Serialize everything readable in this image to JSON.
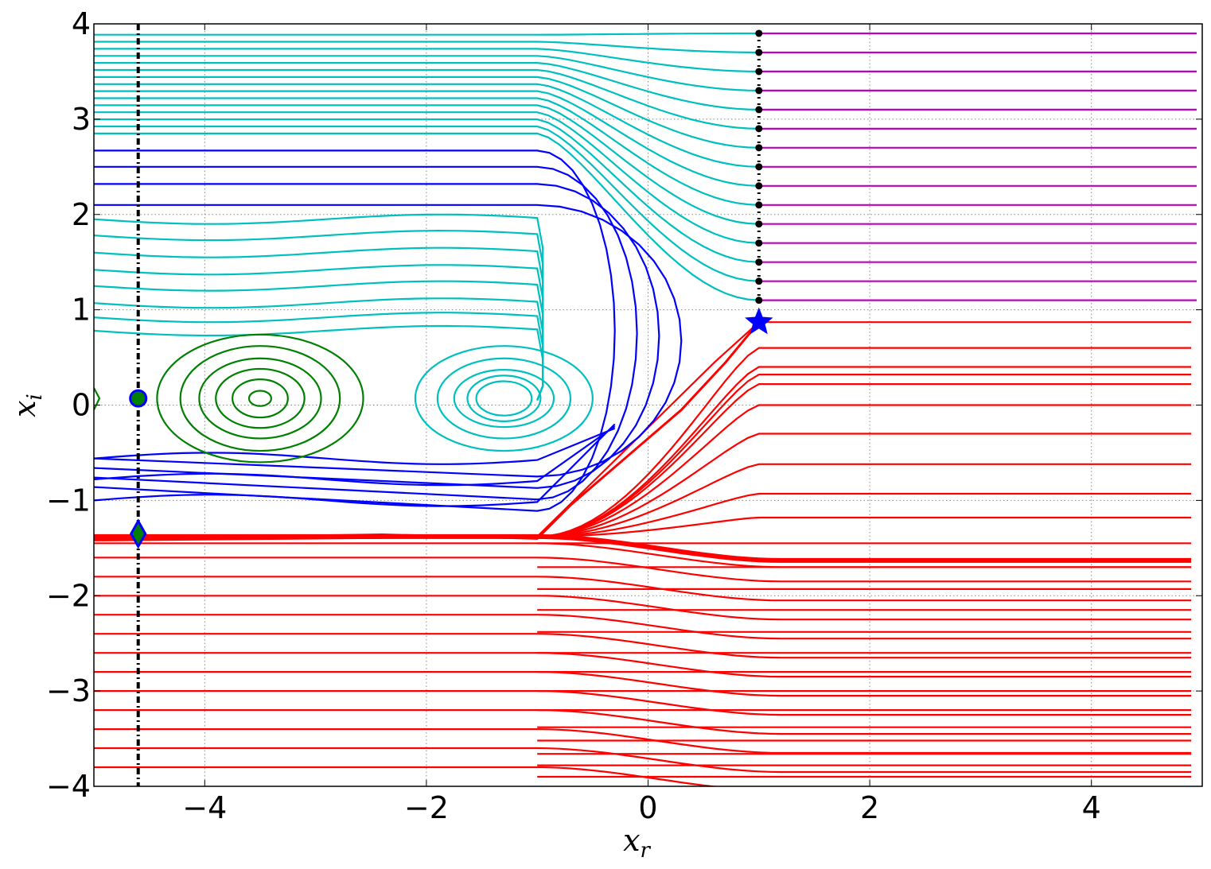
{
  "chart_data": {
    "type": "line",
    "title": "",
    "xlabel": "x",
    "xlabel_sub": "r",
    "ylabel": "x",
    "ylabel_sub": "i",
    "xlim": [
      -5,
      5
    ],
    "ylim": [
      -4,
      4
    ],
    "grid": true,
    "x_ticks": [
      -4,
      -2,
      0,
      2,
      4
    ],
    "x_tick_labels": [
      "−4",
      "−2",
      "0",
      "2",
      "4"
    ],
    "y_ticks": [
      -4,
      -3,
      -2,
      -1,
      0,
      1,
      2,
      3,
      4
    ],
    "y_tick_labels": [
      "−4",
      "−3",
      "−2",
      "−1",
      "0",
      "1",
      "2",
      "3",
      "4"
    ],
    "colors": {
      "red": "#ff0000",
      "blue": "#0000ff",
      "cyan": "#00bfbf",
      "green": "#008000",
      "magenta": "#bf00bf",
      "black": "#000000"
    },
    "vertical_lines": [
      {
        "x": -4.6,
        "style": "dash-dot",
        "color": "black"
      },
      {
        "x": 1.0,
        "style": "dotted",
        "color": "black"
      }
    ],
    "markers": [
      {
        "shape": "circle",
        "x": -4.6,
        "y": 0.07,
        "fill": "#008000",
        "edge": "#0000ff"
      },
      {
        "shape": "diamond",
        "x": -4.6,
        "y": -1.35,
        "fill": "#008000",
        "edge": "#0000ff"
      },
      {
        "shape": "star",
        "x": 1.0,
        "y": 0.87,
        "fill": "#0000ff",
        "edge": "#0000ff"
      }
    ],
    "series": [
      {
        "group": "red",
        "y_right": [
          0.87,
          0.6,
          0.4,
          0.32,
          0.22,
          0.0,
          -0.3,
          -0.62,
          -0.93,
          -1.18,
          -1.45,
          -1.7,
          -1.93,
          -2.15,
          -2.38,
          -2.6,
          -2.8,
          -3.0,
          -3.2,
          -3.38,
          -3.52,
          -3.66,
          -3.78,
          -3.9
        ]
      },
      {
        "group": "red",
        "y_left": [
          -1.38,
          -1.45,
          -1.6,
          -1.8,
          -2.0,
          -2.2,
          -2.4,
          -2.6,
          -2.8,
          -3.0,
          -3.2,
          -3.4,
          -3.6,
          -3.8
        ]
      },
      {
        "group": "magenta",
        "y": [
          1.1,
          1.3,
          1.5,
          1.7,
          1.9,
          2.1,
          2.3,
          2.5,
          2.7,
          2.9,
          3.1,
          3.3,
          3.5,
          3.7,
          3.9
        ]
      },
      {
        "group": "cyan",
        "y_top_left": [
          2.88,
          2.97,
          3.05,
          3.12,
          3.2,
          3.3,
          3.45,
          3.57,
          3.72,
          3.86
        ]
      },
      {
        "group": "blue",
        "y_upper": [
          2.1,
          2.32,
          2.5,
          2.67
        ]
      },
      {
        "group": "blue",
        "y_lower": [
          -0.56,
          -0.78,
          -1.0
        ]
      },
      {
        "group": "green",
        "center": [
          -3.5,
          0.07
        ],
        "radii_x": [
          0.1,
          0.25,
          0.4,
          0.55,
          0.72,
          0.93
        ],
        "radii_y": [
          0.08,
          0.2,
          0.31,
          0.42,
          0.55,
          0.67
        ]
      }
    ]
  }
}
